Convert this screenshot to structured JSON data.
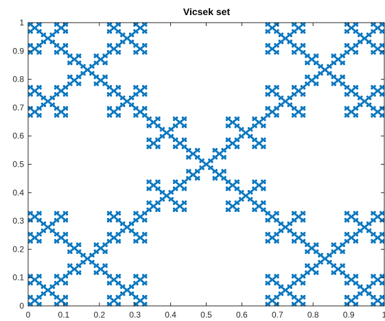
{
  "chart_data": {
    "type": "scatter",
    "title": "Vicsek set",
    "xlabel": "",
    "ylabel": "",
    "xlim": [
      0,
      1
    ],
    "ylim": [
      0,
      1
    ],
    "xticks": [
      "0",
      "0.1",
      "0.2",
      "0.3",
      "0.4",
      "0.5",
      "0.6",
      "0.7",
      "0.8",
      "0.9",
      "1"
    ],
    "yticks": [
      "0",
      "0.1",
      "0.2",
      "0.3",
      "0.4",
      "0.5",
      "0.6",
      "0.7",
      "0.8",
      "0.9",
      "1"
    ],
    "grid": false,
    "legend": "none",
    "series": [
      {
        "marker": "dot",
        "color": "#0072BD",
        "description": "Points of the Vicsek (saltire) fractal, 4 levels of recursion over the unit square",
        "fractal_levels": 4
      }
    ]
  }
}
